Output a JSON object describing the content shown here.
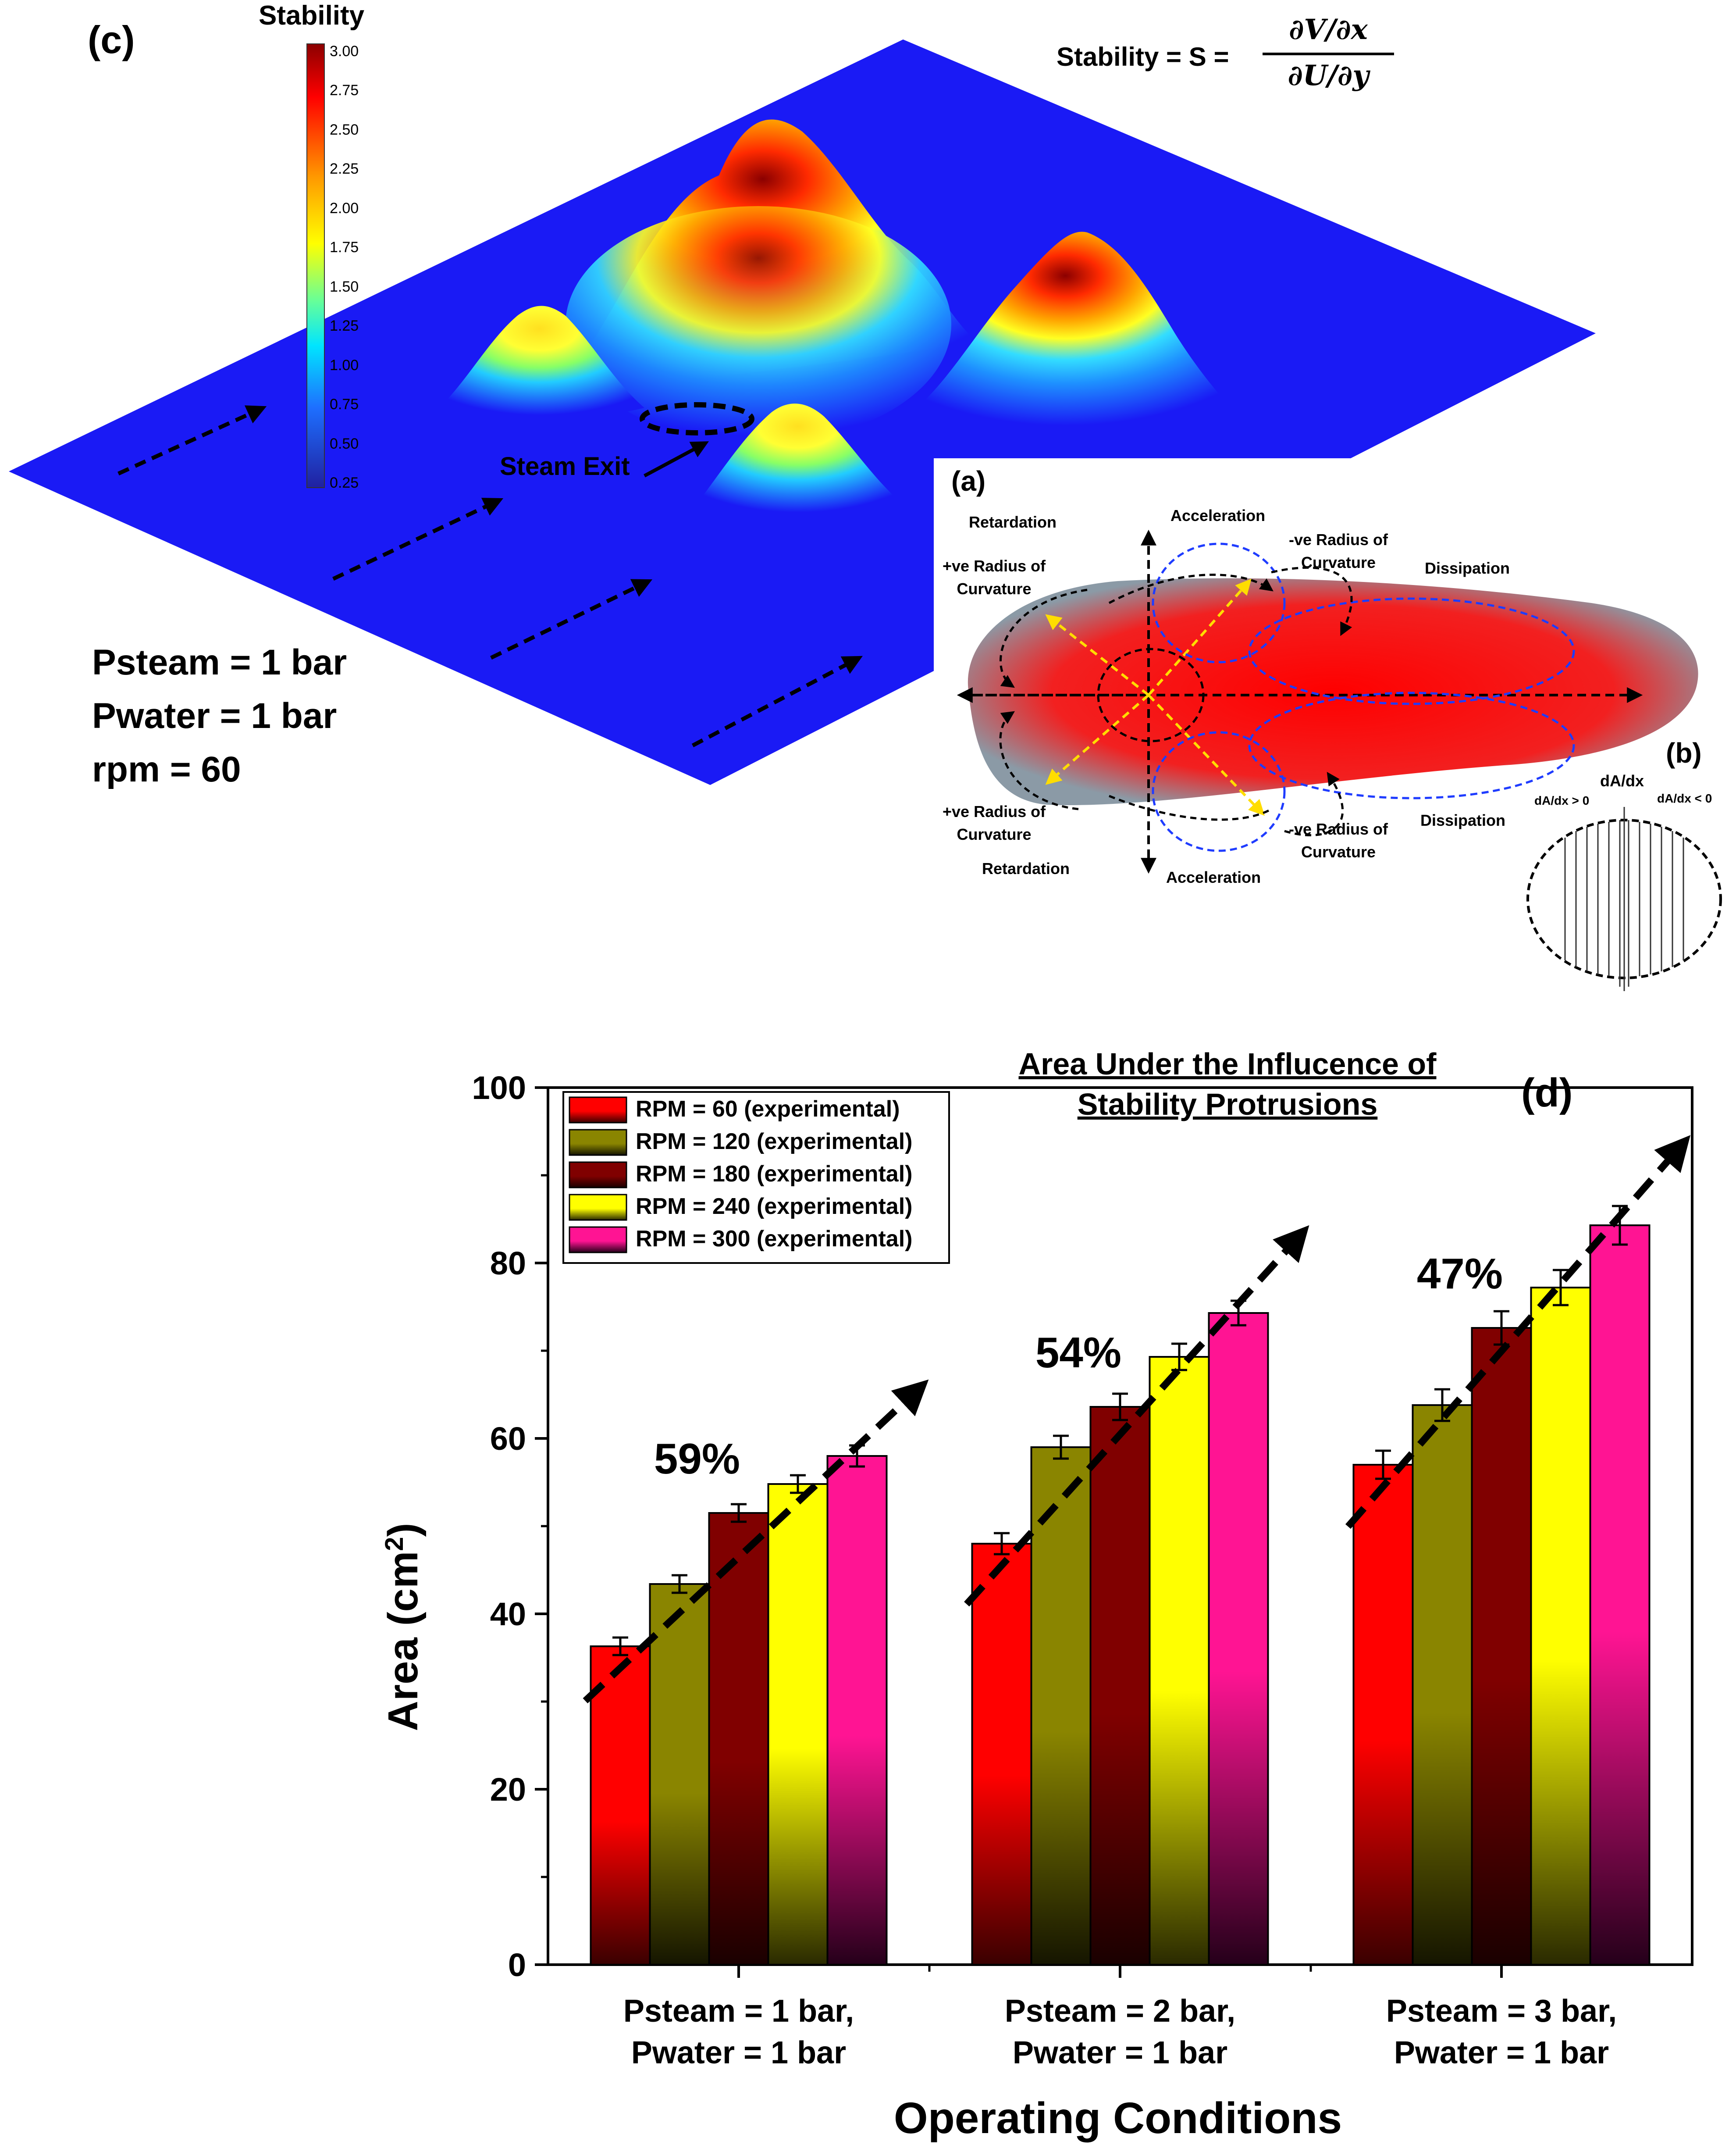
{
  "panel_c": {
    "label": "(c)",
    "colorbar_title": "Stability",
    "colorbar_ticks": [
      "3.00",
      "2.75",
      "2.50",
      "2.25",
      "2.00",
      "1.75",
      "1.50",
      "1.25",
      "1.00",
      "0.75",
      "0.50",
      "0.25"
    ],
    "formula_prefix": "Stability = S =",
    "formula_numerator": "∂V/∂x",
    "formula_denominator": "∂U/∂y",
    "steam_exit_label": "Steam Exit",
    "conditions": [
      "Psteam = 1 bar",
      "Pwater = 1 bar",
      "rpm = 60"
    ],
    "colors": {
      "plane": "#1a1af5",
      "low": "#0000ff",
      "high": "#8b0000"
    }
  },
  "panel_a": {
    "label": "(a)",
    "labels": {
      "retardation_top": "Retardation",
      "acceleration_top": "Acceleration",
      "neg_radius_top": [
        "-ve Radius of",
        "Curvature"
      ],
      "dissipation_top": "Dissipation",
      "pos_radius_top": [
        "+ve Radius of",
        "Curvature"
      ],
      "pos_radius_bottom": [
        "+ve Radius of",
        "Curvature"
      ],
      "retardation_bottom": "Retardation",
      "acceleration_bottom": "Acceleration",
      "neg_radius_bottom": [
        "-ve Radius of",
        "Curvature"
      ],
      "dissipation_bottom": "Dissipation"
    }
  },
  "panel_b": {
    "label": "(b)",
    "top_label": "dA/dx",
    "left_label": "dA/dx > 0",
    "right_label": "dA/dx < 0"
  },
  "chart_data": {
    "type": "bar",
    "panel_label": "(d)",
    "title": [
      "Area Under the Influcence of",
      "Stability Protrusions"
    ],
    "xlabel": "Operating Conditions",
    "ylabel": "Area (cm",
    "ylabel_sup": "2",
    "ylabel_close": ")",
    "ylim": [
      0,
      100
    ],
    "yticks": [
      "0",
      "20",
      "40",
      "60",
      "80",
      "100"
    ],
    "categories": [
      [
        "Psteam = 1 bar,",
        "Pwater = 1 bar"
      ],
      [
        "Psteam = 2 bar,",
        "Pwater = 1 bar"
      ],
      [
        "Psteam = 3 bar,",
        "Pwater = 1 bar"
      ]
    ],
    "series": [
      {
        "name": "RPM = 60 (experimental)",
        "values": [
          36.3,
          48.0,
          57.0
        ],
        "errors": [
          1.0,
          1.2,
          1.6
        ],
        "color_top": "#ff0000",
        "color_bottom": "#3a0000"
      },
      {
        "name": "RPM = 120 (experimental)",
        "values": [
          43.4,
          59.0,
          63.8
        ],
        "errors": [
          1.0,
          1.3,
          1.8
        ],
        "color_top": "#8a8500",
        "color_bottom": "#151500"
      },
      {
        "name": "RPM = 180 (experimental)",
        "values": [
          51.5,
          63.6,
          72.6
        ],
        "errors": [
          1.0,
          1.5,
          1.9
        ],
        "color_top": "#800000",
        "color_bottom": "#1a0000"
      },
      {
        "name": "RPM = 240 (experimental)",
        "values": [
          54.8,
          69.3,
          77.2
        ],
        "errors": [
          1.0,
          1.5,
          2.0
        ],
        "color_top": "#ffff00",
        "color_bottom": "#2a2a00"
      },
      {
        "name": "RPM = 300 (experimental)",
        "values": [
          58.0,
          74.3,
          84.3
        ],
        "errors": [
          1.2,
          1.4,
          2.2
        ],
        "color_top": "#ff1493",
        "color_bottom": "#25001a"
      }
    ],
    "annotations": [
      "59%",
      "54%",
      "47%"
    ]
  }
}
